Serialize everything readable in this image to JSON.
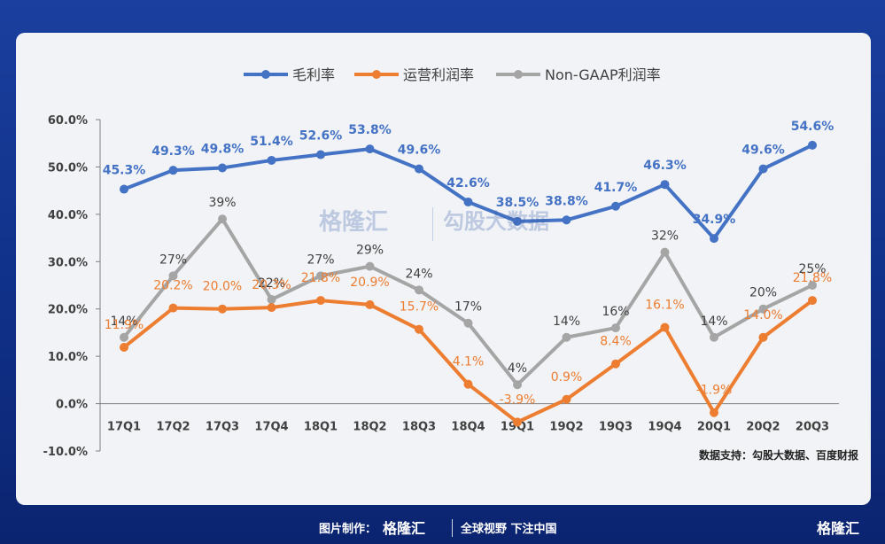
{
  "chart_data": {
    "type": "line",
    "categories": [
      "17Q1",
      "17Q2",
      "17Q3",
      "17Q4",
      "18Q1",
      "18Q2",
      "18Q3",
      "18Q4",
      "19Q1",
      "19Q2",
      "19Q3",
      "19Q4",
      "20Q1",
      "20Q2",
      "20Q3"
    ],
    "ylim": [
      -10,
      60
    ],
    "yticks": [
      "-10.0%",
      "0.0%",
      "10.0%",
      "20.0%",
      "30.0%",
      "40.0%",
      "50.0%",
      "60.0%"
    ],
    "legend_position": "top-center",
    "grid": false,
    "series": [
      {
        "name": "毛利率",
        "color": "#4472c4",
        "values": [
          45.3,
          49.3,
          49.8,
          51.4,
          52.6,
          53.8,
          49.6,
          42.6,
          38.5,
          38.8,
          41.7,
          46.3,
          34.9,
          49.6,
          54.6
        ],
        "labels": [
          "45.3%",
          "49.3%",
          "49.8%",
          "51.4%",
          "52.6%",
          "53.8%",
          "49.6%",
          "42.6%",
          "38.5%",
          "38.8%",
          "41.7%",
          "46.3%",
          "34.9%",
          "49.6%",
          "54.6%"
        ]
      },
      {
        "name": "运营利润率",
        "color": "#ed7d31",
        "values": [
          11.9,
          20.2,
          20.0,
          20.3,
          21.8,
          20.9,
          15.7,
          4.1,
          -3.9,
          0.9,
          8.4,
          16.1,
          -1.9,
          14.0,
          21.8
        ],
        "labels": [
          "11.9%",
          "20.2%",
          "20.0%",
          "20.3%",
          "21.8%",
          "20.9%",
          "15.7%",
          "4.1%",
          "-3.9%",
          "0.9%",
          "8.4%",
          "16.1%",
          "-1.9%",
          "14.0%",
          "21.8%"
        ]
      },
      {
        "name": "Non-GAAP利润率",
        "color": "#a5a5a5",
        "values": [
          14,
          27,
          39,
          22,
          27,
          29,
          24,
          17,
          4,
          14,
          16,
          32,
          14,
          20,
          25
        ],
        "labels": [
          "14%",
          "27%",
          "39%",
          "22%",
          "27%",
          "29%",
          "24%",
          "17%",
          "4%",
          "14%",
          "16%",
          "32%",
          "14%",
          "20%",
          "25%"
        ]
      }
    ]
  },
  "watermark": {
    "logo": "格隆汇",
    "right": "勾股大数据"
  },
  "source_text": "数据支持：勾股大数据、百度财报",
  "footer": {
    "made": "图片制作：",
    "logo": "格隆汇",
    "slogan": "全球视野 下注中国",
    "corner": "格隆汇"
  }
}
